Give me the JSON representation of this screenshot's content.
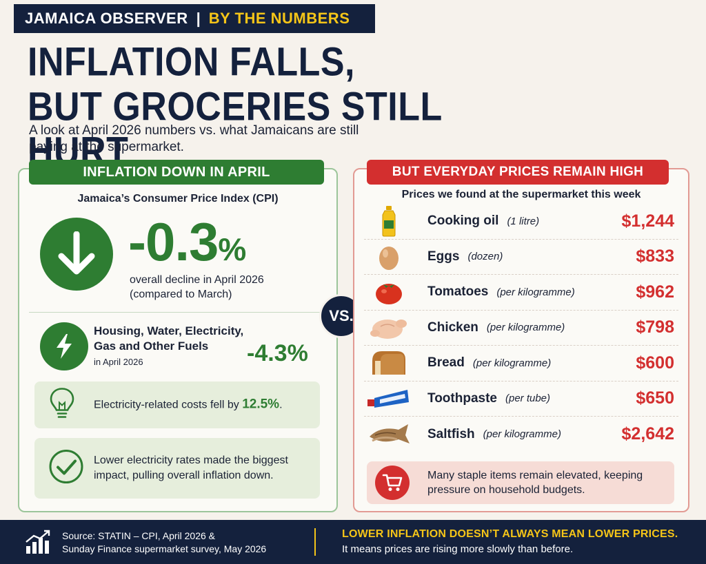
{
  "masthead": {
    "publication": "JAMAICA OBSERVER",
    "separator": "|",
    "kicker": "BY THE NUMBERS"
  },
  "headline": {
    "line1": "INFLATION FALLS,",
    "line2": "BUT GROCERIES STILL HURT"
  },
  "subhead": "A look at April 2026 numbers vs. what Jamaicans are still paying at the supermarket.",
  "left_panel": {
    "banner": "INFLATION DOWN IN APRIL",
    "cpi_label": "Jamaica’s Consumer Price Index (CPI)",
    "overall_change": "-0.3",
    "overall_change_unit": "%",
    "overall_desc_1": "overall decline in April 2026",
    "overall_desc_2": "(compared to March)",
    "housing_title": "Housing, Water, Electricity, Gas and Other Fuels",
    "housing_sub": "in April 2026",
    "housing_change": "-4.3%",
    "electricity_note_prefix": "Electricity-related costs fell by",
    "electricity_note_value": "12.5%",
    "electricity_note_suffix": ".",
    "impact_note": "Lower electricity rates made the biggest impact, pulling overall inflation down.",
    "icons": [
      "arrow-down-icon",
      "lightning-bolt-icon",
      "light-bulb-icon",
      "checkmark-icon"
    ],
    "accent_color": "#2e7d32"
  },
  "vs_label": "VS.",
  "right_panel": {
    "banner": "BUT EVERYDAY PRICES REMAIN HIGH",
    "prices_label": "Prices we found at the supermarket this week",
    "items": [
      {
        "name": "Cooking oil",
        "unit": "(1 litre)",
        "price": "$1,244",
        "icon": "cooking-oil-bottle-icon"
      },
      {
        "name": "Eggs",
        "unit": "(dozen)",
        "price": "$833",
        "icon": "egg-icon"
      },
      {
        "name": "Tomatoes",
        "unit": "(per kilogramme)",
        "price": "$962",
        "icon": "tomato-icon"
      },
      {
        "name": "Chicken",
        "unit": "(per kilogramme)",
        "price": "$798",
        "icon": "chicken-icon"
      },
      {
        "name": "Bread",
        "unit": "(per kilogramme)",
        "price": "$600",
        "icon": "bread-icon"
      },
      {
        "name": "Toothpaste",
        "unit": "(per tube)",
        "price": "$650",
        "icon": "toothpaste-icon"
      },
      {
        "name": "Saltfish",
        "unit": "(per kilogramme)",
        "price": "$2,642",
        "icon": "saltfish-icon"
      }
    ],
    "warning": "Many staple items remain elevated, keeping pressure on household budgets.",
    "warning_icon": "shopping-cart-icon",
    "accent_color": "#d32f2f"
  },
  "footer": {
    "source_line1": "Source: STATIN – CPI, April 2026 &",
    "source_line2": "Sunday Finance supermarket survey, May 2026",
    "tagline": "LOWER INFLATION DOESN’T ALWAYS MEAN LOWER PRICES.",
    "tagline_sub": "It means prices are rising more slowly than before.",
    "icon": "bar-chart-icon",
    "highlight_color": "#f5c518"
  }
}
